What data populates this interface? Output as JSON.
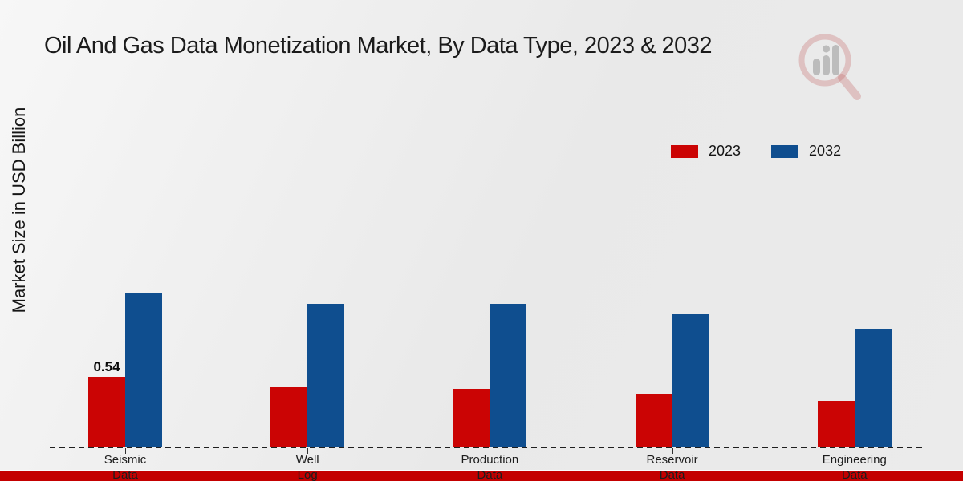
{
  "title": "Oil And Gas Data Monetization Market, By Data Type, 2023 & 2032",
  "y_axis_label": "Market Size in USD Billion",
  "legend": {
    "items": [
      {
        "label": "2023",
        "color": "#CB0404"
      },
      {
        "label": "2032",
        "color": "#0F4E8F"
      }
    ]
  },
  "watermark": {
    "icon": "magnifier-bar-chart-logo"
  },
  "footer": {
    "banner_color": "#C40000"
  },
  "chart_data": {
    "type": "bar",
    "title": "Oil And Gas Data Monetization Market, By Data Type, 2023 & 2032",
    "xlabel": "",
    "ylabel": "Market Size in USD Billion",
    "categories": [
      "Seismic Data",
      "Well Log",
      "Production Data",
      "Reservoir Data",
      "Engineering Data"
    ],
    "series": [
      {
        "name": "2023",
        "color": "#CB0404",
        "values": [
          0.54,
          0.46,
          0.45,
          0.41,
          0.36
        ]
      },
      {
        "name": "2032",
        "color": "#0F4E8F",
        "values": [
          1.18,
          1.1,
          1.1,
          1.02,
          0.91
        ]
      }
    ],
    "data_labels": [
      {
        "series": "2023",
        "category": "Seismic Data",
        "text": "0.54"
      }
    ],
    "ylim": [
      0,
      1.4
    ],
    "grid": false,
    "y_ticks_visible": false,
    "legend_position": "top-right",
    "baseline_style": "dashed"
  }
}
